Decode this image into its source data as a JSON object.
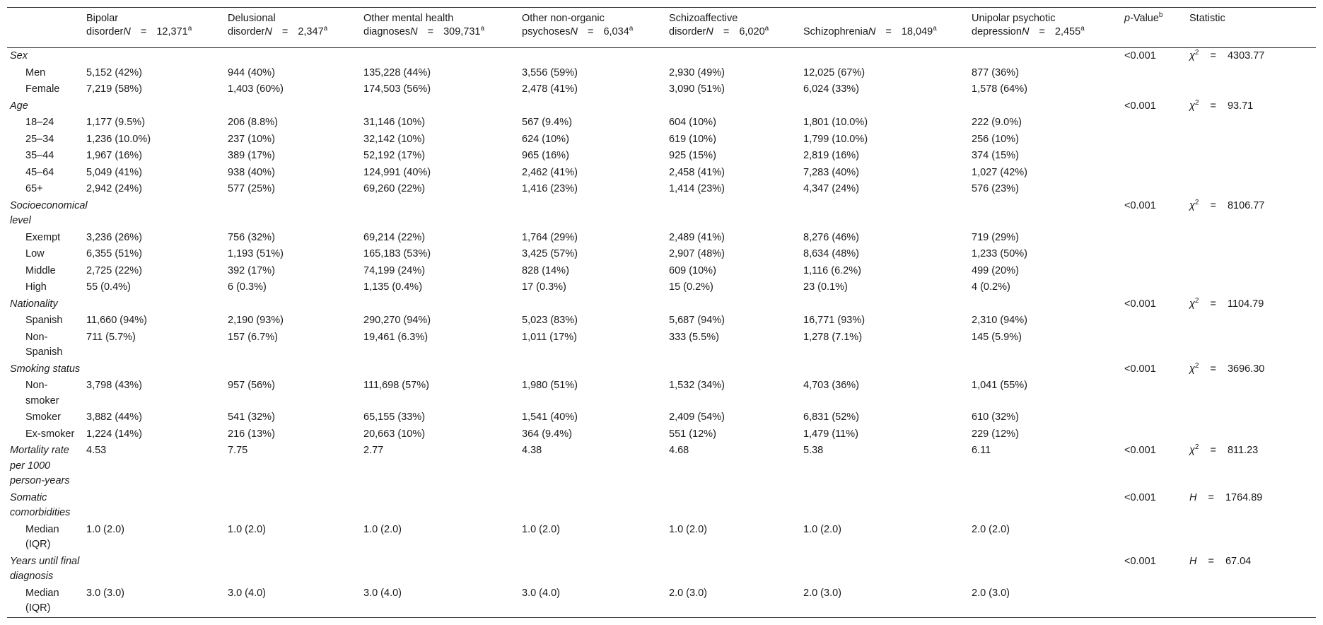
{
  "header": {
    "groups": [
      {
        "line1": "Bipolar",
        "line2": "disorder",
        "n": "12,371",
        "sup": "a"
      },
      {
        "line1": "Delusional",
        "line2": "disorder",
        "n": "2,347",
        "sup": "a"
      },
      {
        "line1": "Other mental health",
        "line2": "diagnoses",
        "n": "309,731",
        "sup": "a"
      },
      {
        "line1": "Other non-organic",
        "line2": "psychoses",
        "n": "6,034",
        "sup": "a"
      },
      {
        "line1": "Schizoaffective",
        "line2": "disorder",
        "n": "6,020",
        "sup": "a"
      },
      {
        "line1": "",
        "line2": "Schizophrenia",
        "n": "18,049",
        "sup": "a"
      },
      {
        "line1": "Unipolar psychotic",
        "line2": "depression",
        "n": "2,455",
        "sup": "a"
      }
    ],
    "n_label": "N",
    "eq": "=",
    "pvalue_p": "p",
    "pvalue_rest": "-Value",
    "pvalue_sup": "b",
    "statistic": "Statistic"
  },
  "rows": {
    "sex": {
      "label": "Sex",
      "p": "<0.001",
      "sym": "χ",
      "sup": "2",
      "eq": "=",
      "val": "4303.77"
    },
    "men": {
      "label": "Men",
      "c": [
        "5,152 (42%)",
        "944 (40%)",
        "135,228 (44%)",
        "3,556 (59%)",
        "2,930 (49%)",
        "12,025 (67%)",
        "877 (36%)"
      ]
    },
    "female": {
      "label": "Female",
      "c": [
        "7,219 (58%)",
        "1,403 (60%)",
        "174,503 (56%)",
        "2,478 (41%)",
        "3,090 (51%)",
        "6,024 (33%)",
        "1,578 (64%)"
      ]
    },
    "age": {
      "label": "Age",
      "p": "<0.001",
      "sym": "χ",
      "sup": "2",
      "eq": "=",
      "val": "93.71"
    },
    "a1824": {
      "label": "18–24",
      "c": [
        "1,177 (9.5%)",
        "206 (8.8%)",
        "31,146 (10%)",
        "567 (9.4%)",
        "604 (10%)",
        "1,801 (10.0%)",
        "222 (9.0%)"
      ]
    },
    "a2534": {
      "label": "25–34",
      "c": [
        "1,236 (10.0%)",
        "237 (10%)",
        "32,142 (10%)",
        "624 (10%)",
        "619 (10%)",
        "1,799 (10.0%)",
        "256 (10%)"
      ]
    },
    "a3544": {
      "label": "35–44",
      "c": [
        "1,967 (16%)",
        "389 (17%)",
        "52,192 (17%)",
        "965 (16%)",
        "925 (15%)",
        "2,819 (16%)",
        "374 (15%)"
      ]
    },
    "a4564": {
      "label": "45–64",
      "c": [
        "5,049 (41%)",
        "938 (40%)",
        "124,991 (40%)",
        "2,462 (41%)",
        "2,458 (41%)",
        "7,283 (40%)",
        "1,027 (42%)"
      ]
    },
    "a65": {
      "label": "65+",
      "c": [
        "2,942 (24%)",
        "577 (25%)",
        "69,260 (22%)",
        "1,416 (23%)",
        "1,414 (23%)",
        "4,347 (24%)",
        "576 (23%)"
      ]
    },
    "ses": {
      "label": "Socioeconomical level",
      "p": "<0.001",
      "sym": "χ",
      "sup": "2",
      "eq": "=",
      "val": "8106.77"
    },
    "exempt": {
      "label": "Exempt",
      "c": [
        "3,236 (26%)",
        "756 (32%)",
        "69,214 (22%)",
        "1,764 (29%)",
        "2,489 (41%)",
        "8,276 (46%)",
        "719 (29%)"
      ]
    },
    "low": {
      "label": "Low",
      "c": [
        "6,355 (51%)",
        "1,193 (51%)",
        "165,183 (53%)",
        "3,425 (57%)",
        "2,907 (48%)",
        "8,634 (48%)",
        "1,233 (50%)"
      ]
    },
    "middle": {
      "label": "Middle",
      "c": [
        "2,725 (22%)",
        "392 (17%)",
        "74,199 (24%)",
        "828 (14%)",
        "609 (10%)",
        "1,116 (6.2%)",
        "499 (20%)"
      ]
    },
    "high": {
      "label": "High",
      "c": [
        "55 (0.4%)",
        "6 (0.3%)",
        "1,135 (0.4%)",
        "17 (0.3%)",
        "15 (0.2%)",
        "23 (0.1%)",
        "4 (0.2%)"
      ]
    },
    "nat": {
      "label": "Nationality",
      "p": "<0.001",
      "sym": "χ",
      "sup": "2",
      "eq": "=",
      "val": "1104.79"
    },
    "spanish": {
      "label": "Spanish",
      "c": [
        "11,660 (94%)",
        "2,190 (93%)",
        "290,270 (94%)",
        "5,023 (83%)",
        "5,687 (94%)",
        "16,771 (93%)",
        "2,310 (94%)"
      ]
    },
    "nonspanish": {
      "label": "Non-Spanish",
      "c": [
        "711 (5.7%)",
        "157 (6.7%)",
        "19,461 (6.3%)",
        "1,011 (17%)",
        "333 (5.5%)",
        "1,278 (7.1%)",
        "145 (5.9%)"
      ]
    },
    "smoke": {
      "label": "Smoking status",
      "p": "<0.001",
      "sym": "χ",
      "sup": "2",
      "eq": "=",
      "val": "3696.30"
    },
    "nonsmoker": {
      "label": "Non-smoker",
      "c": [
        "3,798 (43%)",
        "957 (56%)",
        "111,698 (57%)",
        "1,980 (51%)",
        "1,532 (34%)",
        "4,703 (36%)",
        "1,041 (55%)"
      ]
    },
    "smoker": {
      "label": "Smoker",
      "c": [
        "3,882 (44%)",
        "541 (32%)",
        "65,155 (33%)",
        "1,541 (40%)",
        "2,409 (54%)",
        "6,831 (52%)",
        "610 (32%)"
      ]
    },
    "exsmoker": {
      "label": "Ex-smoker",
      "c": [
        "1,224 (14%)",
        "216 (13%)",
        "20,663 (10%)",
        "364 (9.4%)",
        "551 (12%)",
        "1,479 (11%)",
        "229 (12%)"
      ]
    },
    "mort": {
      "label": "Mortality rate per 1000 person-years",
      "c": [
        "4.53",
        "7.75",
        "2.77",
        "4.38",
        "4.68",
        "5.38",
        "6.11"
      ],
      "p": "<0.001",
      "sym": "χ",
      "sup": "2",
      "eq": "=",
      "val": "811.23"
    },
    "somatic": {
      "label": "Somatic comorbidities",
      "p": "<0.001",
      "sym": "H",
      "sup": "",
      "eq": "=",
      "val": "1764.89"
    },
    "somatic_med": {
      "label": "Median (IQR)",
      "c": [
        "1.0 (2.0)",
        "1.0 (2.0)",
        "1.0 (2.0)",
        "1.0 (2.0)",
        "1.0 (2.0)",
        "1.0 (2.0)",
        "2.0 (2.0)"
      ]
    },
    "years": {
      "label": "Years until final diagnosis",
      "p": "<0.001",
      "sym": "H",
      "sup": "",
      "eq": "=",
      "val": "67.04"
    },
    "years_med": {
      "label": "Median (IQR)",
      "c": [
        "3.0 (3.0)",
        "3.0 (4.0)",
        "3.0 (4.0)",
        "3.0 (4.0)",
        "2.0 (3.0)",
        "2.0 (3.0)",
        "2.0 (3.0)"
      ]
    }
  }
}
